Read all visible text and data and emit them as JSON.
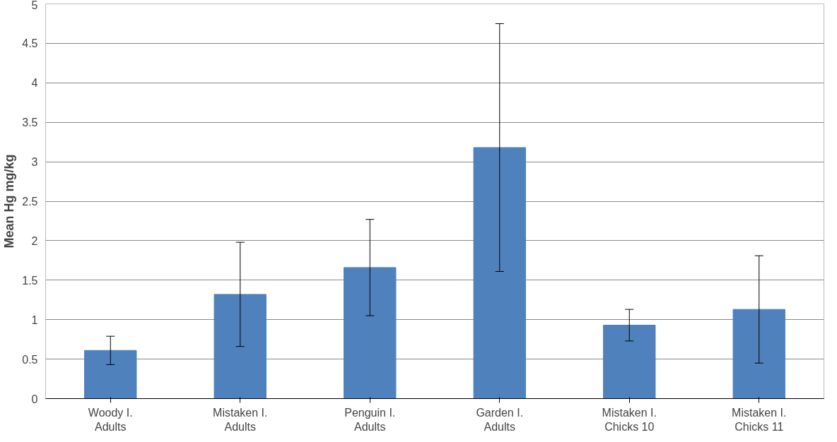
{
  "chart_data": {
    "type": "bar",
    "ylabel": "Mean Hg mg/kg",
    "categories": [
      "Woody I.\nAdults",
      "Mistaken I.\nAdults",
      "Penguin I.\nAdults",
      "Garden I.\nAdults",
      "Mistaken I.\nChicks 10",
      "Mistaken I.\nChicks 11"
    ],
    "values": [
      0.61,
      1.32,
      1.66,
      3.18,
      0.93,
      1.13
    ],
    "errors": [
      0.18,
      0.66,
      0.61,
      1.57,
      0.2,
      0.68
    ],
    "color": "#4f81bd",
    "ylim": [
      0,
      5
    ],
    "yticks": [
      0,
      0.5,
      1,
      1.5,
      2,
      2.5,
      3,
      3.5,
      4,
      4.5,
      5
    ],
    "grid": "y"
  }
}
